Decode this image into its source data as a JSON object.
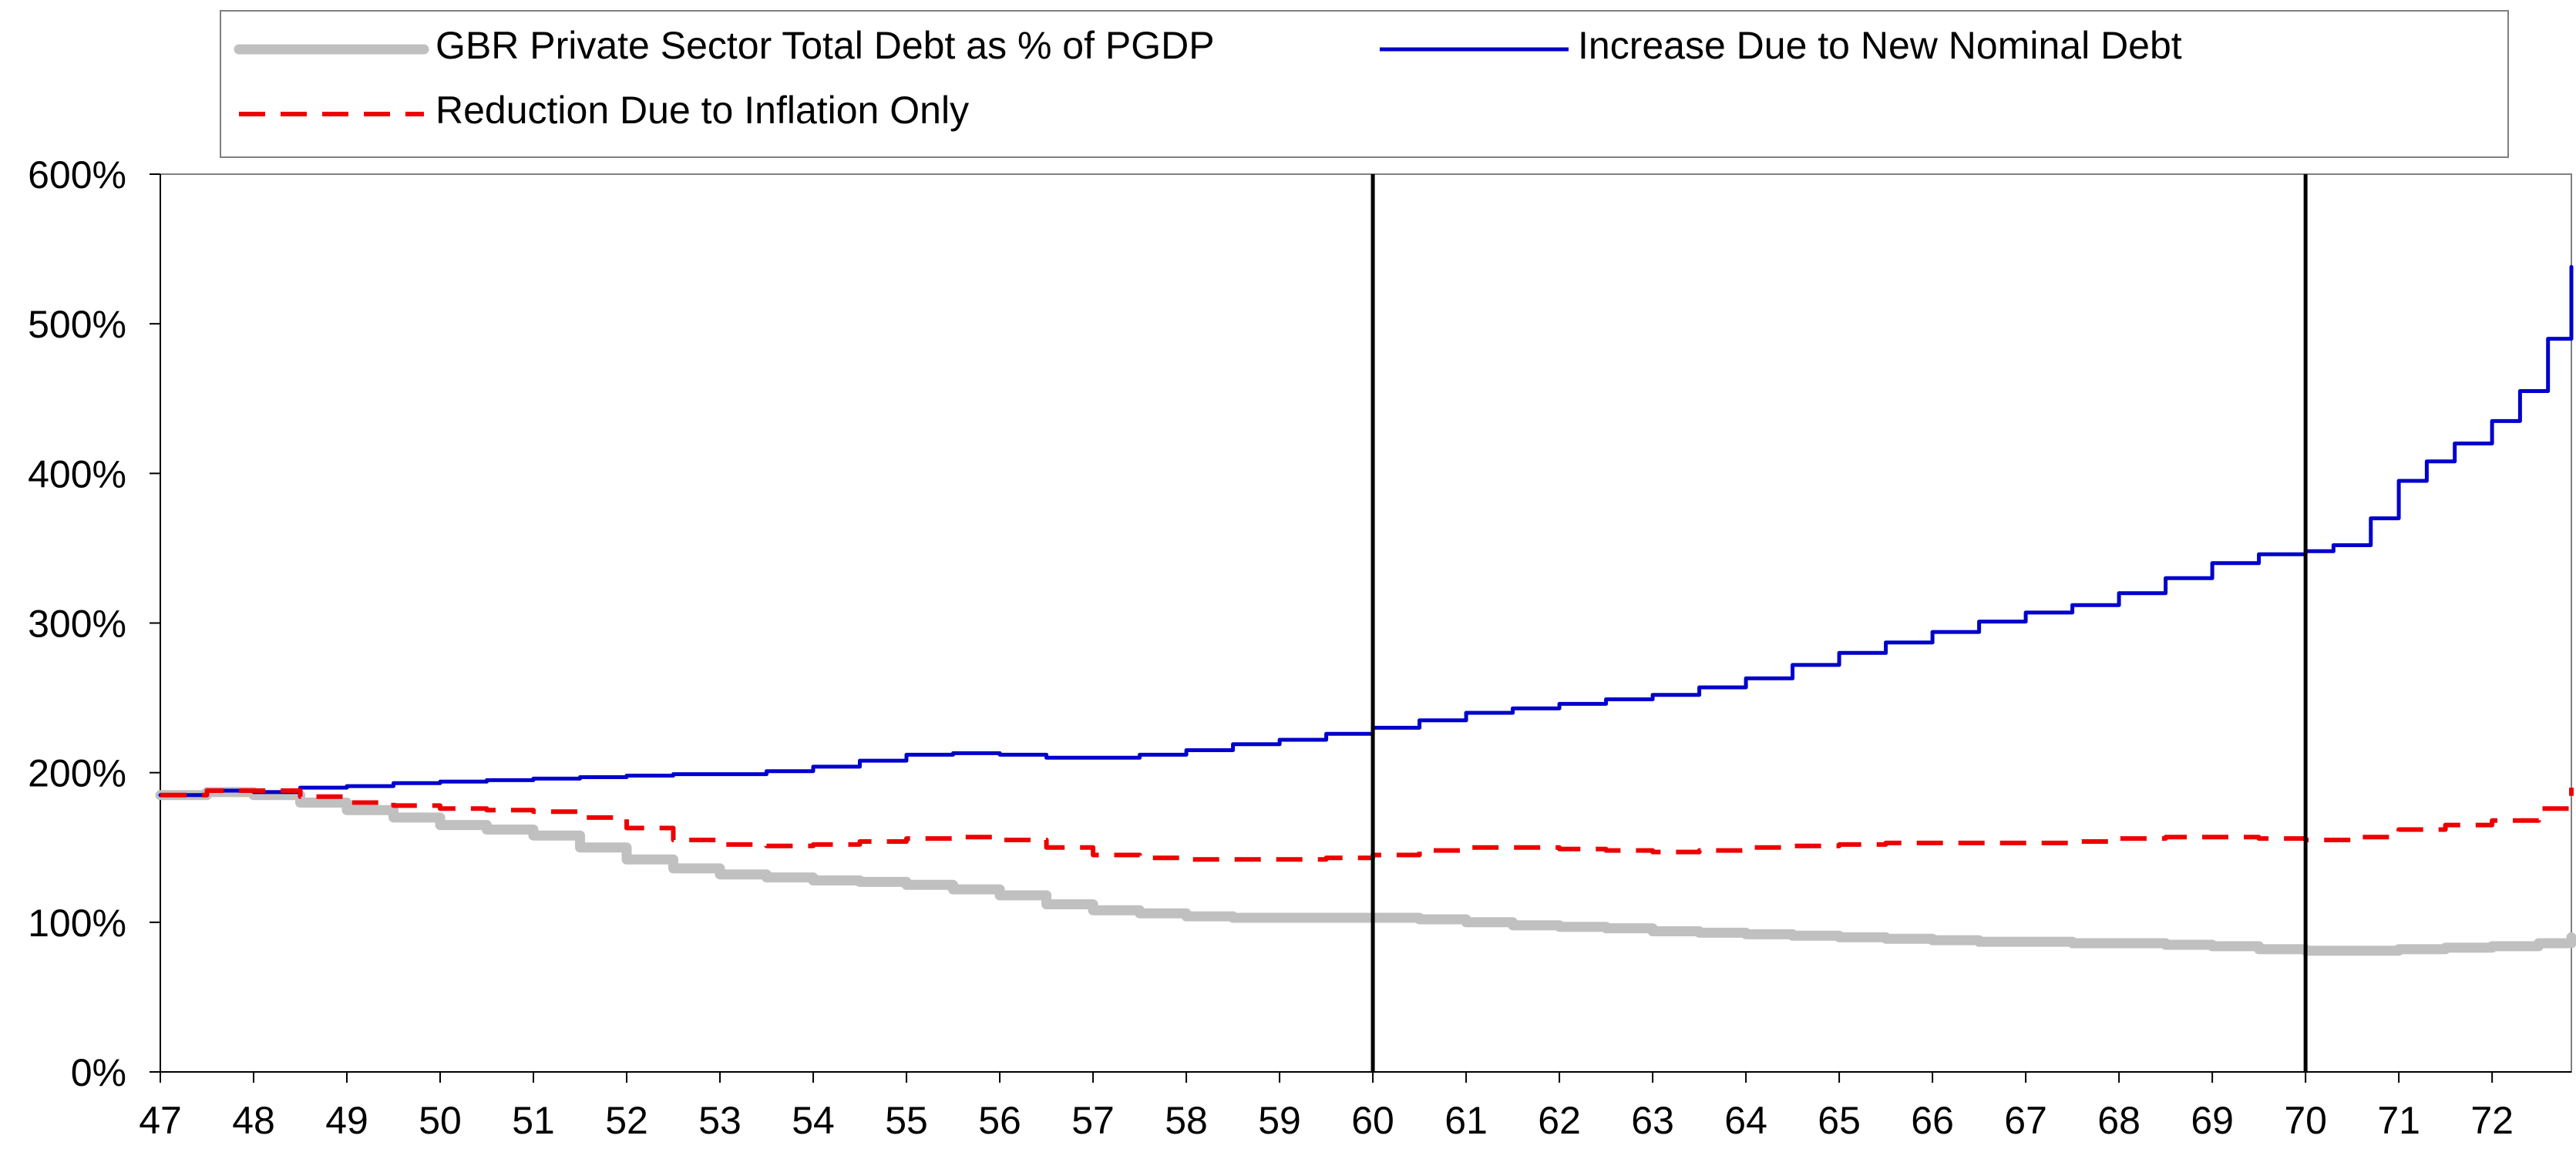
{
  "chart_data": {
    "type": "line",
    "title": "",
    "xlabel": "",
    "ylabel": "",
    "xlim": [
      47,
      72.85
    ],
    "ylim": [
      0,
      600
    ],
    "y_ticks": [
      0,
      100,
      200,
      300,
      400,
      500,
      600
    ],
    "y_tick_labels": [
      "0%",
      "100%",
      "200%",
      "300%",
      "400%",
      "500%",
      "600%"
    ],
    "x_ticks": [
      47,
      48,
      49,
      50,
      51,
      52,
      53,
      54,
      55,
      56,
      57,
      58,
      59,
      60,
      61,
      62,
      63,
      64,
      65,
      66,
      67,
      68,
      69,
      70,
      71,
      72
    ],
    "x_tick_labels": [
      "47",
      "48",
      "49",
      "50",
      "51",
      "52",
      "53",
      "54",
      "55",
      "56",
      "57",
      "58",
      "59",
      "60",
      "61",
      "62",
      "63",
      "64",
      "65",
      "66",
      "67",
      "68",
      "69",
      "70",
      "71",
      "72"
    ],
    "grid": false,
    "legend_position": "top",
    "vertical_markers": [
      60,
      70
    ],
    "series": [
      {
        "name": "GBR Private Sector Total Debt as % of PGDP",
        "color": "#c0c0c0",
        "style": "solid-thick",
        "points": [
          [
            47,
            185
          ],
          [
            47.5,
            187
          ],
          [
            48,
            185
          ],
          [
            48.5,
            180
          ],
          [
            49,
            175
          ],
          [
            49.5,
            170
          ],
          [
            50,
            165
          ],
          [
            50.5,
            162
          ],
          [
            51,
            158
          ],
          [
            51.5,
            150
          ],
          [
            52,
            142
          ],
          [
            52.5,
            136
          ],
          [
            53,
            132
          ],
          [
            53.5,
            130
          ],
          [
            54,
            128
          ],
          [
            54.5,
            127
          ],
          [
            55,
            125
          ],
          [
            55.5,
            122
          ],
          [
            56,
            118
          ],
          [
            56.5,
            112
          ],
          [
            57,
            108
          ],
          [
            57.5,
            106
          ],
          [
            58,
            104
          ],
          [
            58.5,
            103
          ],
          [
            59,
            103
          ],
          [
            59.5,
            103
          ],
          [
            60,
            103
          ],
          [
            60.5,
            102
          ],
          [
            61,
            100
          ],
          [
            61.5,
            98
          ],
          [
            62,
            97
          ],
          [
            62.5,
            96
          ],
          [
            63,
            94
          ],
          [
            63.5,
            93
          ],
          [
            64,
            92
          ],
          [
            64.5,
            91
          ],
          [
            65,
            90
          ],
          [
            65.5,
            89
          ],
          [
            66,
            88
          ],
          [
            66.5,
            87
          ],
          [
            67,
            87
          ],
          [
            67.5,
            86
          ],
          [
            68,
            86
          ],
          [
            68.5,
            85
          ],
          [
            69,
            84
          ],
          [
            69.5,
            82
          ],
          [
            70,
            81
          ],
          [
            70.5,
            81
          ],
          [
            71,
            82
          ],
          [
            71.5,
            83
          ],
          [
            72,
            84
          ],
          [
            72.5,
            86
          ],
          [
            72.85,
            90
          ]
        ]
      },
      {
        "name": "Increase Due to New Nominal Debt",
        "color": "#0000cc",
        "style": "solid",
        "points": [
          [
            47,
            185
          ],
          [
            47.5,
            188
          ],
          [
            48,
            187
          ],
          [
            48.5,
            190
          ],
          [
            49,
            191
          ],
          [
            49.5,
            193
          ],
          [
            50,
            194
          ],
          [
            50.5,
            195
          ],
          [
            51,
            196
          ],
          [
            51.5,
            197
          ],
          [
            52,
            198
          ],
          [
            52.5,
            199
          ],
          [
            53,
            199
          ],
          [
            53.5,
            201
          ],
          [
            54,
            204
          ],
          [
            54.5,
            208
          ],
          [
            55,
            212
          ],
          [
            55.5,
            213
          ],
          [
            56,
            212
          ],
          [
            56.5,
            210
          ],
          [
            57,
            210
          ],
          [
            57.5,
            212
          ],
          [
            58,
            215
          ],
          [
            58.5,
            219
          ],
          [
            59,
            222
          ],
          [
            59.5,
            226
          ],
          [
            60,
            230
          ],
          [
            60.5,
            235
          ],
          [
            61,
            240
          ],
          [
            61.5,
            243
          ],
          [
            62,
            246
          ],
          [
            62.5,
            249
          ],
          [
            63,
            252
          ],
          [
            63.5,
            257
          ],
          [
            64,
            263
          ],
          [
            64.5,
            272
          ],
          [
            65,
            280
          ],
          [
            65.5,
            287
          ],
          [
            66,
            294
          ],
          [
            66.5,
            301
          ],
          [
            67,
            307
          ],
          [
            67.5,
            312
          ],
          [
            68,
            320
          ],
          [
            68.5,
            330
          ],
          [
            69,
            340
          ],
          [
            69.5,
            346
          ],
          [
            70,
            348
          ],
          [
            70.3,
            352
          ],
          [
            70.7,
            370
          ],
          [
            71,
            395
          ],
          [
            71.3,
            408
          ],
          [
            71.6,
            420
          ],
          [
            72,
            435
          ],
          [
            72.3,
            455
          ],
          [
            72.6,
            490
          ],
          [
            72.85,
            538
          ]
        ]
      },
      {
        "name": "Reduction Due to Inflation Only",
        "color": "#ee0000",
        "style": "dashed",
        "points": [
          [
            47,
            185
          ],
          [
            47.5,
            188
          ],
          [
            48,
            188
          ],
          [
            48.5,
            184
          ],
          [
            49,
            180
          ],
          [
            49.5,
            178
          ],
          [
            50,
            176
          ],
          [
            50.5,
            175
          ],
          [
            51,
            174
          ],
          [
            51.5,
            170
          ],
          [
            52,
            163
          ],
          [
            52.5,
            155
          ],
          [
            53,
            152
          ],
          [
            53.5,
            151
          ],
          [
            54,
            152
          ],
          [
            54.5,
            154
          ],
          [
            55,
            156
          ],
          [
            55.5,
            157
          ],
          [
            56,
            155
          ],
          [
            56.5,
            150
          ],
          [
            57,
            145
          ],
          [
            57.5,
            143
          ],
          [
            58,
            142
          ],
          [
            58.5,
            142
          ],
          [
            59,
            142
          ],
          [
            59.5,
            143
          ],
          [
            60,
            145
          ],
          [
            60.5,
            148
          ],
          [
            61,
            150
          ],
          [
            61.5,
            150
          ],
          [
            62,
            149
          ],
          [
            62.5,
            148
          ],
          [
            63,
            147
          ],
          [
            63.5,
            148
          ],
          [
            64,
            150
          ],
          [
            64.5,
            151
          ],
          [
            65,
            152
          ],
          [
            65.5,
            153
          ],
          [
            66,
            153
          ],
          [
            66.5,
            153
          ],
          [
            67,
            153
          ],
          [
            67.5,
            154
          ],
          [
            68,
            156
          ],
          [
            68.5,
            157
          ],
          [
            69,
            157
          ],
          [
            69.5,
            156
          ],
          [
            70,
            155
          ],
          [
            70.5,
            157
          ],
          [
            71,
            162
          ],
          [
            71.5,
            165
          ],
          [
            72,
            168
          ],
          [
            72.5,
            176
          ],
          [
            72.85,
            190
          ]
        ]
      }
    ]
  }
}
